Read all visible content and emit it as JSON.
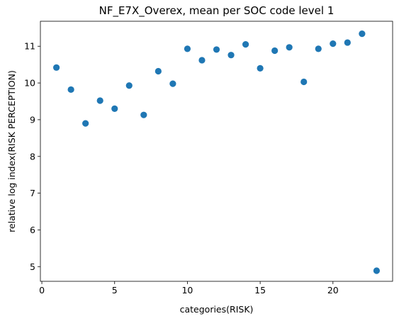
{
  "chart_data": {
    "type": "scatter",
    "title": "NF_E7X_Overex, mean per SOC code level 1",
    "xlabel": "categories(RISK)",
    "ylabel": "relative log index(RISK PERCEPTION)",
    "xlim": [
      -0.1,
      24.1
    ],
    "ylim": [
      4.6,
      11.68
    ],
    "xticks": [
      0,
      5,
      10,
      15,
      20
    ],
    "yticks": [
      5,
      6,
      7,
      8,
      9,
      10,
      11
    ],
    "grid": false,
    "marker_color": "#1f77b4",
    "series": [
      {
        "x": [
          1,
          2,
          3,
          4,
          5,
          6,
          7,
          8,
          9,
          10,
          11,
          12,
          13,
          14,
          15,
          16,
          17,
          18,
          19,
          20,
          21,
          22,
          23
        ],
        "y": [
          10.42,
          9.82,
          8.9,
          9.52,
          9.3,
          9.93,
          9.13,
          10.32,
          9.98,
          10.93,
          10.62,
          10.91,
          10.76,
          11.05,
          10.4,
          10.88,
          10.97,
          10.03,
          10.93,
          11.07,
          11.1,
          11.34,
          4.89
        ]
      }
    ]
  }
}
